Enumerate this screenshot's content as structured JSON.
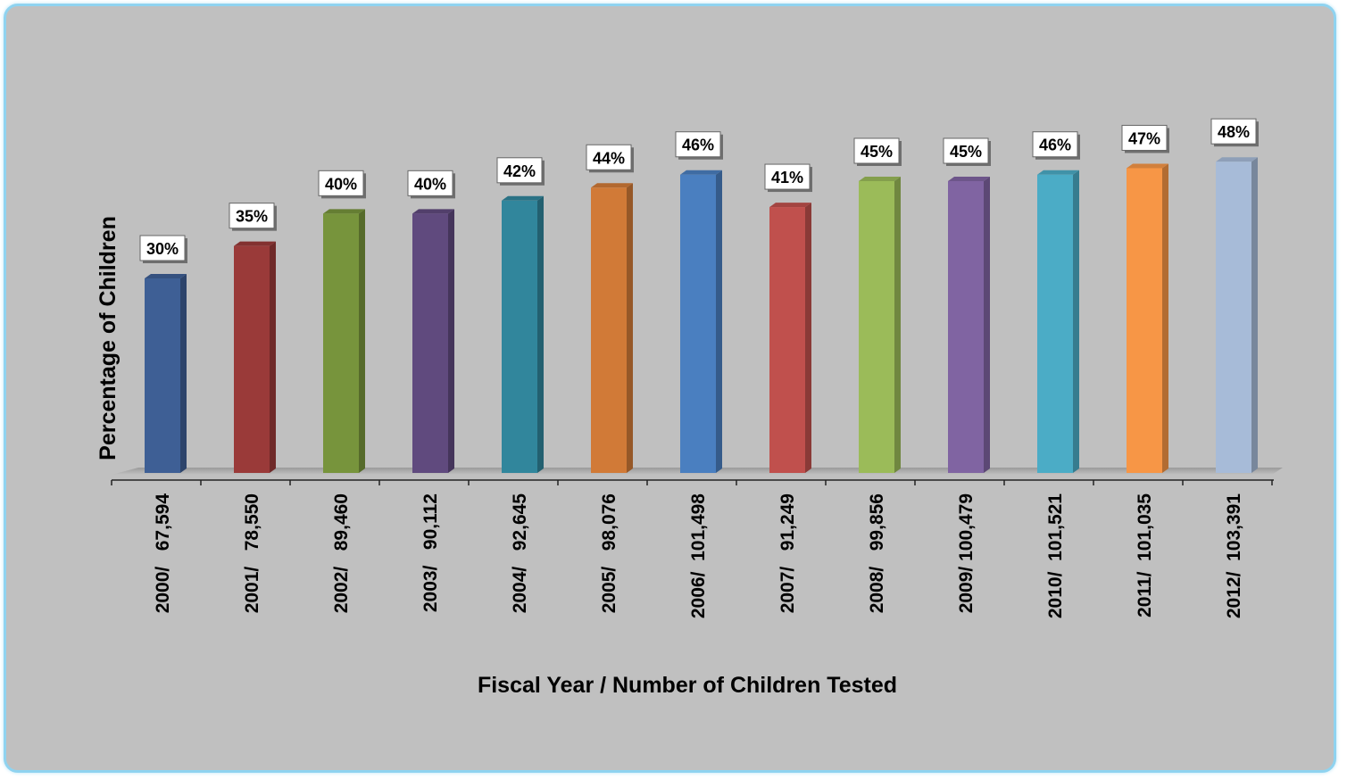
{
  "chart_data": {
    "type": "bar",
    "xlabel": "Fiscal Year / Number of Children Tested",
    "ylabel": "Percentage of Children",
    "ylim": [
      0,
      60
    ],
    "grid": false,
    "legend": "none",
    "categories": [
      "2000/   67,594",
      "2001/   78,550",
      "2002/   89,460",
      "2003/   90,112",
      "2004/   92,645",
      "2005/   98,076",
      "2006/  101,498",
      "2007/   91,249",
      "2008/   99,856",
      "2009/ 100,479",
      "2010/  101,521",
      "2011/  101,035",
      "2012/  103,391"
    ],
    "values": [
      30,
      35,
      40,
      40,
      42,
      44,
      46,
      41,
      45,
      45,
      46,
      47,
      48
    ],
    "data_labels": [
      "30%",
      "35%",
      "40%",
      "40%",
      "42%",
      "44%",
      "46%",
      "41%",
      "45%",
      "45%",
      "46%",
      "47%",
      "48%"
    ],
    "colors": [
      "#3e5f95",
      "#9a3a39",
      "#77943c",
      "#604a7e",
      "#31869c",
      "#d17a37",
      "#4a7fc0",
      "#c0504d",
      "#9bbb59",
      "#8064a2",
      "#4bacc6",
      "#f79646",
      "#a7bbd8"
    ]
  }
}
